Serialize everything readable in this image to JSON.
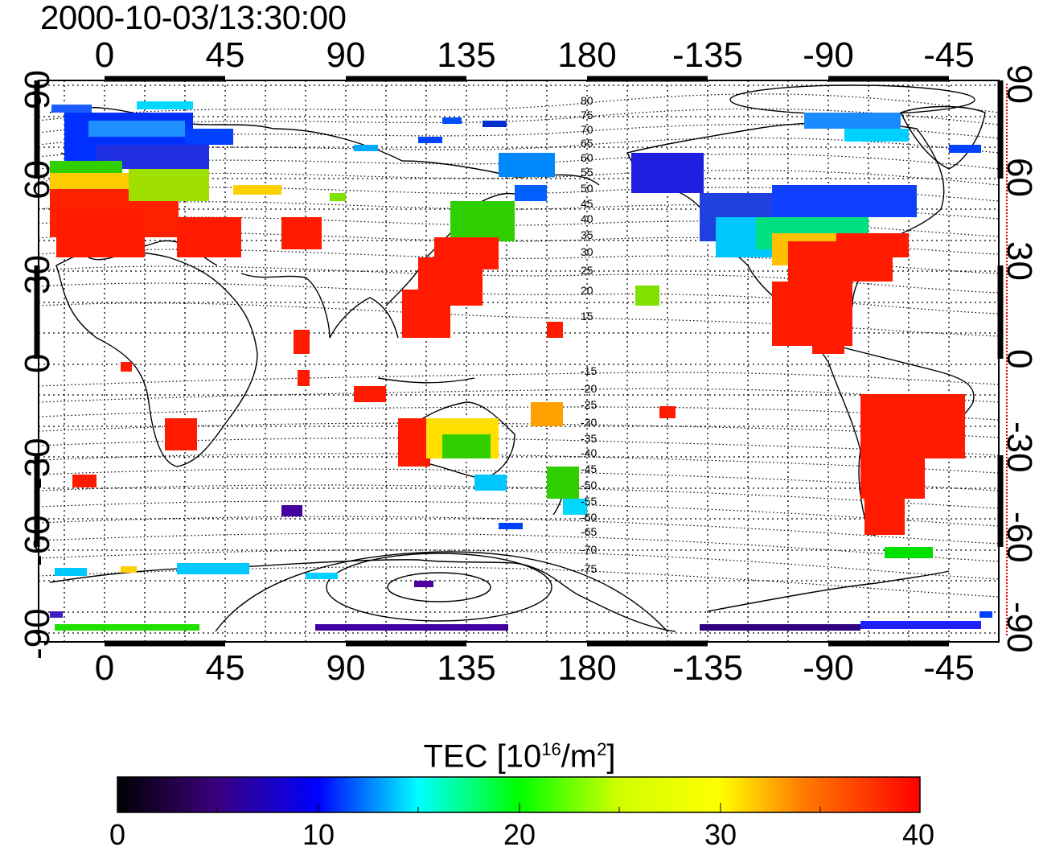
{
  "timestamp": "2000-10-03/13:30:00",
  "map": {
    "lon_ticks_top": [
      "0",
      "45",
      "90",
      "135",
      "180",
      "-135",
      "-90",
      "-45"
    ],
    "lon_ticks_bottom": [
      "0",
      "45",
      "90",
      "135",
      "180",
      "-135",
      "-90",
      "-45"
    ],
    "lat_ticks_left": [
      "90",
      "60",
      "30",
      "0",
      "-30",
      "-60",
      "-90"
    ],
    "lat_ticks_right": [
      "90",
      "60",
      "30",
      "0",
      "-30",
      "-60",
      "-90"
    ],
    "contour_labels": [
      "80",
      "75",
      "70",
      "65",
      "60",
      "55",
      "50",
      "45",
      "40",
      "35",
      "30",
      "25",
      "20",
      "15",
      "-15",
      "-20",
      "-25",
      "-30",
      "-35",
      "-40",
      "-45",
      "-50",
      "-55",
      "-60",
      "-65",
      "-70",
      "-75"
    ]
  },
  "colorbar": {
    "label_main": "TEC  [10",
    "label_sup1": "16",
    "label_mid": "/m",
    "label_sup2": "2",
    "label_end": "]",
    "ticks": [
      "0",
      "10",
      "20",
      "30",
      "40"
    ],
    "range": [
      0,
      40
    ],
    "colors": [
      "#000000",
      "#3a007a",
      "#0000ff",
      "#00ffff",
      "#00ff00",
      "#ffff00",
      "#ff8000",
      "#ff0000"
    ]
  }
}
